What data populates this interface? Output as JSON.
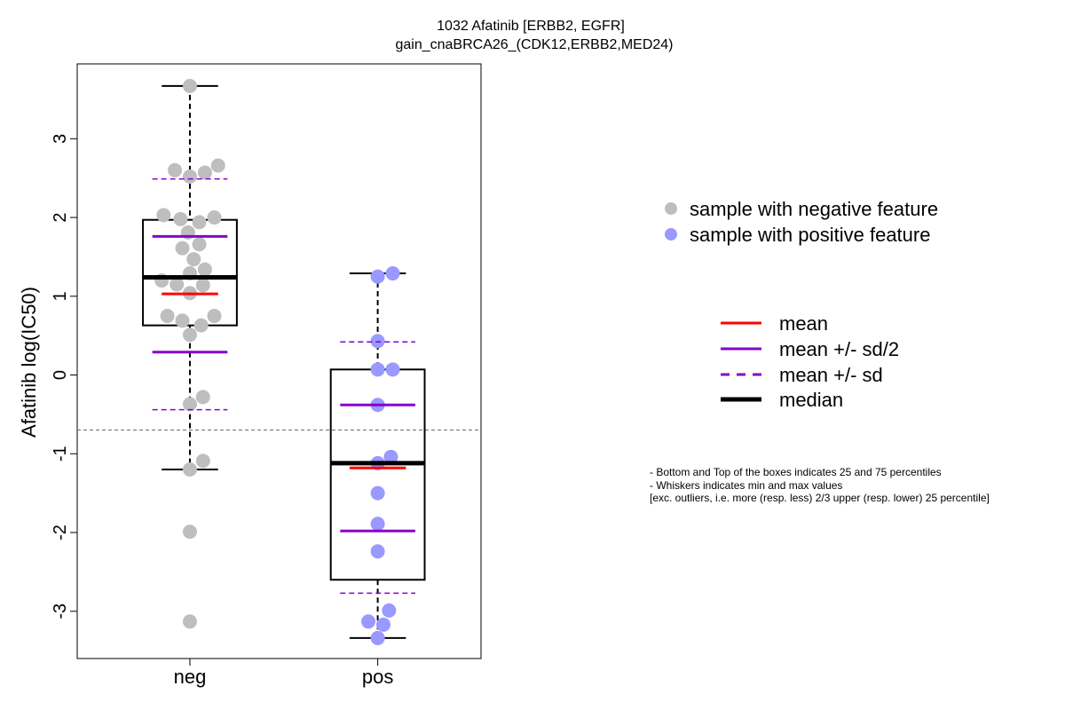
{
  "chart_data": {
    "type": "box",
    "title_lines": [
      "1032 Afatinib [ERBB2, EGFR]",
      "gain_cnaBRCA26_(CDK12,ERBB2,MED24)"
    ],
    "xlabel": "",
    "ylabel": "Afatinib log(IC50)",
    "categories": [
      "neg",
      "pos"
    ],
    "ylim": [
      -3.6,
      3.95
    ],
    "yticks": [
      3,
      2,
      1,
      0,
      -1,
      -2,
      -3
    ],
    "ytick_labels": [
      "3",
      "2",
      "1",
      "0",
      "-1",
      "-2",
      "-3"
    ],
    "reference_line_y": -0.7,
    "series": [
      {
        "category": "neg",
        "color": "#bebebe",
        "q1": 0.63,
        "q3": 1.97,
        "median": 1.24,
        "mean": 1.03,
        "mean_plus_half_sd": 1.76,
        "mean_minus_half_sd": 0.29,
        "mean_plus_sd": 2.49,
        "mean_minus_sd": -0.44,
        "whisker_low": -1.2,
        "whisker_high": 3.67,
        "points": [
          {
            "x": 1.0,
            "y": 3.67
          },
          {
            "x": 0.92,
            "y": 2.6
          },
          {
            "x": 1.0,
            "y": 2.52
          },
          {
            "x": 1.08,
            "y": 2.57
          },
          {
            "x": 1.15,
            "y": 2.66
          },
          {
            "x": 0.86,
            "y": 2.03
          },
          {
            "x": 0.95,
            "y": 1.98
          },
          {
            "x": 1.05,
            "y": 1.94
          },
          {
            "x": 1.13,
            "y": 2.0
          },
          {
            "x": 0.99,
            "y": 1.81
          },
          {
            "x": 1.05,
            "y": 1.66
          },
          {
            "x": 0.96,
            "y": 1.61
          },
          {
            "x": 1.02,
            "y": 1.47
          },
          {
            "x": 1.08,
            "y": 1.34
          },
          {
            "x": 1.0,
            "y": 1.29
          },
          {
            "x": 0.85,
            "y": 1.2
          },
          {
            "x": 0.93,
            "y": 1.15
          },
          {
            "x": 1.07,
            "y": 1.14
          },
          {
            "x": 1.0,
            "y": 1.04
          },
          {
            "x": 0.88,
            "y": 0.75
          },
          {
            "x": 0.96,
            "y": 0.69
          },
          {
            "x": 1.06,
            "y": 0.63
          },
          {
            "x": 1.13,
            "y": 0.75
          },
          {
            "x": 1.0,
            "y": 0.51
          },
          {
            "x": 1.07,
            "y": -0.28
          },
          {
            "x": 1.0,
            "y": -0.37
          },
          {
            "x": 1.07,
            "y": -1.09
          },
          {
            "x": 1.0,
            "y": -1.2
          },
          {
            "x": 1.0,
            "y": -1.99
          },
          {
            "x": 1.0,
            "y": -3.13
          }
        ]
      },
      {
        "category": "pos",
        "color": "#9999ff",
        "q1": -2.6,
        "q3": 0.07,
        "median": -1.12,
        "mean": -1.18,
        "mean_plus_half_sd": -0.38,
        "mean_minus_half_sd": -1.98,
        "mean_plus_sd": 0.42,
        "mean_minus_sd": -2.77,
        "whisker_low": -3.34,
        "whisker_high": 1.29,
        "points": [
          {
            "x": 2.0,
            "y": 1.25
          },
          {
            "x": 2.08,
            "y": 1.29
          },
          {
            "x": 2.0,
            "y": 0.43
          },
          {
            "x": 2.0,
            "y": 0.07
          },
          {
            "x": 2.08,
            "y": 0.07
          },
          {
            "x": 2.0,
            "y": -0.38
          },
          {
            "x": 2.07,
            "y": -1.04
          },
          {
            "x": 2.0,
            "y": -1.12
          },
          {
            "x": 2.0,
            "y": -1.5
          },
          {
            "x": 2.0,
            "y": -1.89
          },
          {
            "x": 2.0,
            "y": -2.24
          },
          {
            "x": 2.06,
            "y": -2.99
          },
          {
            "x": 1.95,
            "y": -3.13
          },
          {
            "x": 2.03,
            "y": -3.17
          },
          {
            "x": 2.0,
            "y": -3.34
          }
        ]
      }
    ],
    "colors": {
      "mean": "#ff0000",
      "sd": "#8800cc",
      "median": "#000000",
      "reference_line": "#666666"
    },
    "grid": false,
    "legend_placement": "right"
  },
  "legend_points": [
    {
      "label": "sample with negative feature",
      "color": "#bebebe"
    },
    {
      "label": "sample with positive feature",
      "color": "#9999ff"
    }
  ],
  "legend_lines": [
    {
      "label": "mean",
      "style": "mean"
    },
    {
      "label": "mean +/- sd/2",
      "style": "halfsd"
    },
    {
      "label": "mean +/- sd",
      "style": "sd"
    },
    {
      "label": "median",
      "style": "median"
    }
  ],
  "notes": [
    "- Bottom and Top of the boxes indicates 25 and 75 percentiles",
    "- Whiskers indicates min and max values",
    "[exc. outliers, i.e. more (resp. less) 2/3 upper (resp. lower) 25 percentile]"
  ]
}
